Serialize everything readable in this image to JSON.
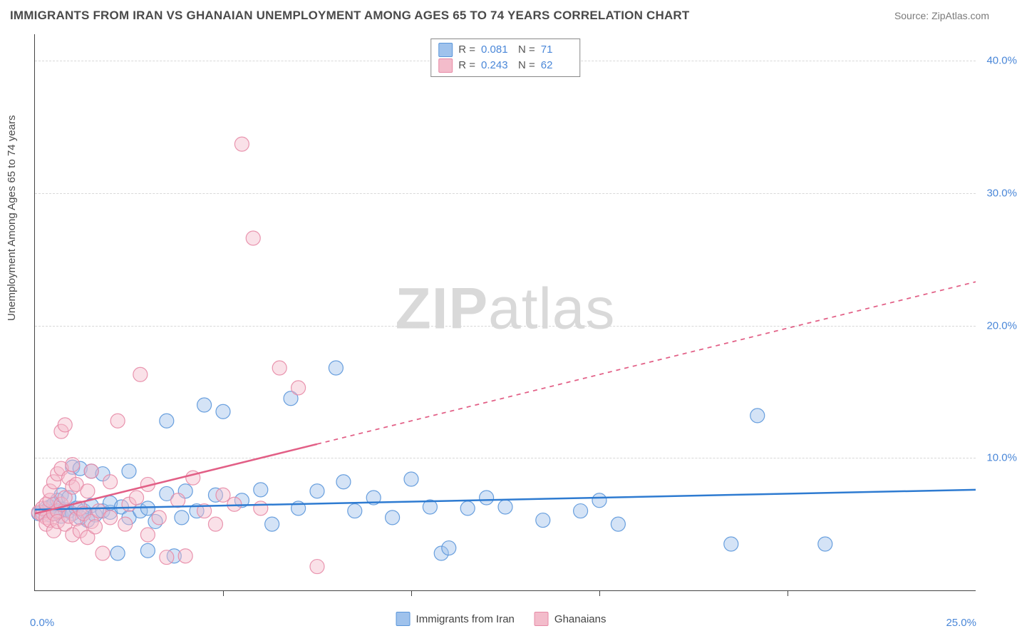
{
  "title": "IMMIGRANTS FROM IRAN VS GHANAIAN UNEMPLOYMENT AMONG AGES 65 TO 74 YEARS CORRELATION CHART",
  "source_prefix": "Source: ",
  "source_name": "ZipAtlas.com",
  "y_axis_label": "Unemployment Among Ages 65 to 74 years",
  "watermark_a": "ZIP",
  "watermark_b": "atlas",
  "chart": {
    "type": "scatter",
    "xlim": [
      0,
      25
    ],
    "ylim": [
      0,
      42
    ],
    "x_origin_label": "0.0%",
    "x_max_label": "25.0%",
    "y_ticks": [
      10,
      20,
      30,
      40
    ],
    "y_tick_labels": [
      "10.0%",
      "20.0%",
      "30.0%",
      "40.0%"
    ],
    "x_ticks": [
      5,
      10,
      15,
      20
    ],
    "grid_color": "#d8d8d8",
    "background_color": "#ffffff",
    "marker_radius": 10,
    "marker_opacity": 0.45,
    "marker_stroke_opacity": 0.9,
    "line_width": 2.5,
    "series": [
      {
        "name": "Immigrants from Iran",
        "color_fill": "#9fc2ec",
        "color_stroke": "#5a96da",
        "line_color": "#2e7bd1",
        "R": "0.081",
        "N": "71",
        "trend": {
          "y0": 6.1,
          "y1": 7.6,
          "solid_x_end": 25
        },
        "points": [
          [
            0.1,
            5.8
          ],
          [
            0.2,
            5.9
          ],
          [
            0.3,
            6.0
          ],
          [
            0.3,
            6.2
          ],
          [
            0.4,
            5.7
          ],
          [
            0.4,
            6.3
          ],
          [
            0.5,
            6.0
          ],
          [
            0.5,
            6.5
          ],
          [
            0.6,
            5.9
          ],
          [
            0.6,
            6.8
          ],
          [
            0.7,
            5.6
          ],
          [
            0.7,
            7.2
          ],
          [
            0.8,
            6.1
          ],
          [
            0.9,
            6.0
          ],
          [
            0.9,
            7.0
          ],
          [
            1.0,
            5.8
          ],
          [
            1.0,
            9.3
          ],
          [
            1.1,
            6.2
          ],
          [
            1.2,
            5.5
          ],
          [
            1.2,
            9.2
          ],
          [
            1.3,
            6.0
          ],
          [
            1.4,
            5.3
          ],
          [
            1.5,
            9.0
          ],
          [
            1.5,
            6.4
          ],
          [
            1.6,
            5.7
          ],
          [
            1.8,
            6.0
          ],
          [
            1.8,
            8.8
          ],
          [
            2.0,
            5.9
          ],
          [
            2.0,
            6.6
          ],
          [
            2.2,
            2.8
          ],
          [
            2.3,
            6.3
          ],
          [
            2.5,
            5.5
          ],
          [
            2.5,
            9.0
          ],
          [
            2.8,
            6.0
          ],
          [
            3.0,
            3.0
          ],
          [
            3.0,
            6.2
          ],
          [
            3.2,
            5.2
          ],
          [
            3.5,
            7.3
          ],
          [
            3.5,
            12.8
          ],
          [
            3.7,
            2.6
          ],
          [
            3.9,
            5.5
          ],
          [
            4.0,
            7.5
          ],
          [
            4.3,
            6.0
          ],
          [
            4.5,
            14.0
          ],
          [
            4.8,
            7.2
          ],
          [
            5.0,
            13.5
          ],
          [
            5.5,
            6.8
          ],
          [
            6.0,
            7.6
          ],
          [
            6.3,
            5.0
          ],
          [
            6.8,
            14.5
          ],
          [
            7.0,
            6.2
          ],
          [
            7.5,
            7.5
          ],
          [
            8.0,
            16.8
          ],
          [
            8.2,
            8.2
          ],
          [
            8.5,
            6.0
          ],
          [
            9.0,
            7.0
          ],
          [
            9.5,
            5.5
          ],
          [
            10.0,
            8.4
          ],
          [
            10.5,
            6.3
          ],
          [
            10.8,
            2.8
          ],
          [
            11.0,
            3.2
          ],
          [
            11.5,
            6.2
          ],
          [
            12.0,
            7.0
          ],
          [
            12.5,
            6.3
          ],
          [
            13.5,
            5.3
          ],
          [
            14.5,
            6.0
          ],
          [
            15.0,
            6.8
          ],
          [
            15.5,
            5.0
          ],
          [
            18.5,
            3.5
          ],
          [
            19.2,
            13.2
          ],
          [
            21.0,
            3.5
          ]
        ]
      },
      {
        "name": "Ghanaians",
        "color_fill": "#f3bccb",
        "color_stroke": "#e78aa6",
        "line_color": "#e25f86",
        "R": "0.243",
        "N": "62",
        "trend": {
          "y0": 5.8,
          "y1": 23.3,
          "solid_x_end": 7.5
        },
        "points": [
          [
            0.1,
            5.9
          ],
          [
            0.2,
            5.7
          ],
          [
            0.2,
            6.2
          ],
          [
            0.3,
            5.5
          ],
          [
            0.3,
            6.5
          ],
          [
            0.3,
            5.0
          ],
          [
            0.4,
            6.8
          ],
          [
            0.4,
            5.3
          ],
          [
            0.4,
            7.5
          ],
          [
            0.5,
            5.8
          ],
          [
            0.5,
            8.2
          ],
          [
            0.5,
            4.5
          ],
          [
            0.6,
            6.0
          ],
          [
            0.6,
            8.8
          ],
          [
            0.6,
            5.2
          ],
          [
            0.7,
            6.5
          ],
          [
            0.7,
            9.2
          ],
          [
            0.7,
            12.0
          ],
          [
            0.8,
            12.5
          ],
          [
            0.8,
            5.0
          ],
          [
            0.8,
            7.0
          ],
          [
            0.9,
            5.6
          ],
          [
            0.9,
            8.5
          ],
          [
            1.0,
            4.2
          ],
          [
            1.0,
            9.5
          ],
          [
            1.0,
            7.8
          ],
          [
            1.1,
            5.4
          ],
          [
            1.1,
            8.0
          ],
          [
            1.2,
            6.2
          ],
          [
            1.2,
            4.5
          ],
          [
            1.3,
            5.8
          ],
          [
            1.4,
            7.5
          ],
          [
            1.4,
            4.0
          ],
          [
            1.5,
            5.2
          ],
          [
            1.5,
            9.0
          ],
          [
            1.6,
            4.8
          ],
          [
            1.7,
            6.0
          ],
          [
            1.8,
            2.8
          ],
          [
            2.0,
            5.5
          ],
          [
            2.0,
            8.2
          ],
          [
            2.2,
            12.8
          ],
          [
            2.4,
            5.0
          ],
          [
            2.5,
            6.5
          ],
          [
            2.7,
            7.0
          ],
          [
            2.8,
            16.3
          ],
          [
            3.0,
            4.2
          ],
          [
            3.0,
            8.0
          ],
          [
            3.3,
            5.5
          ],
          [
            3.5,
            2.5
          ],
          [
            3.8,
            6.8
          ],
          [
            4.0,
            2.6
          ],
          [
            4.2,
            8.5
          ],
          [
            4.5,
            6.0
          ],
          [
            4.8,
            5.0
          ],
          [
            5.0,
            7.2
          ],
          [
            5.3,
            6.5
          ],
          [
            5.5,
            33.7
          ],
          [
            5.8,
            26.6
          ],
          [
            6.0,
            6.2
          ],
          [
            6.5,
            16.8
          ],
          [
            7.0,
            15.3
          ],
          [
            7.5,
            1.8
          ]
        ]
      }
    ]
  },
  "legend_bottom": [
    {
      "label": "Immigrants from Iran",
      "fill": "#9fc2ec",
      "stroke": "#5a96da"
    },
    {
      "label": "Ghanaians",
      "fill": "#f3bccb",
      "stroke": "#e78aa6"
    }
  ]
}
